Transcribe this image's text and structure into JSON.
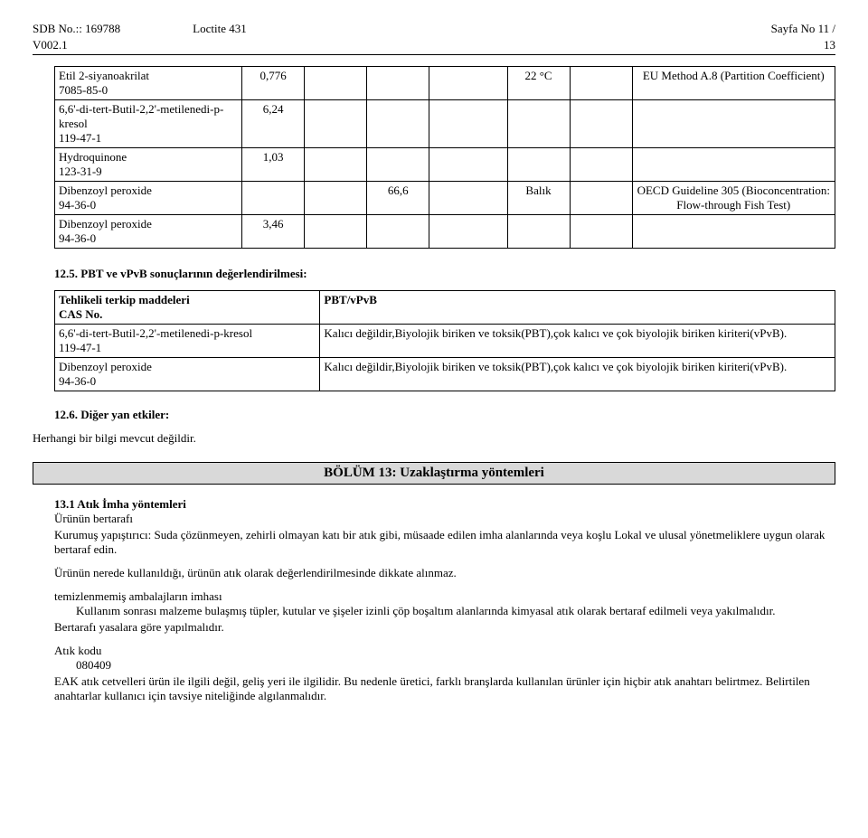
{
  "header": {
    "sdb": "SDB No.:: 169788",
    "product": "Loctite 431",
    "page": "Sayfa No 11 /",
    "version": "V002.1",
    "total": "13"
  },
  "table1": {
    "rows": [
      {
        "sub": "Etil 2-siyanoakrilat\n7085-85-0",
        "c1": "0,776",
        "c2": "",
        "c3": "",
        "c4": "",
        "c5": "22 °C",
        "c6": "",
        "method": "EU Method A.8 (Partition Coefficient)"
      },
      {
        "sub": "6,6'-di-tert-Butil-2,2'-metilenedi-p-kresol\n119-47-1",
        "c1": "6,24",
        "c2": "",
        "c3": "",
        "c4": "",
        "c5": "",
        "c6": "",
        "method": ""
      },
      {
        "sub": "Hydroquinone\n123-31-9",
        "c1": "1,03",
        "c2": "",
        "c3": "",
        "c4": "",
        "c5": "",
        "c6": "",
        "method": ""
      },
      {
        "sub": "Dibenzoyl peroxide\n94-36-0",
        "c1": "",
        "c2": "",
        "c3": "66,6",
        "c4": "",
        "c5": "Balık",
        "c6": "",
        "method": "OECD Guideline 305 (Bioconcentration: Flow-through Fish Test)"
      },
      {
        "sub": "Dibenzoyl peroxide\n94-36-0",
        "c1": "3,46",
        "c2": "",
        "c3": "",
        "c4": "",
        "c5": "",
        "c6": "",
        "method": ""
      }
    ]
  },
  "s125": {
    "title": "12.5. PBT ve vPvB sonuçlarının değerlendirilmesi:",
    "head1": "Tehlikeli terkip maddeleri\nCAS No.",
    "head2": "PBT/vPvB",
    "rows": [
      {
        "a": "6,6'-di-tert-Butil-2,2'-metilenedi-p-kresol\n119-47-1",
        "b": "Kalıcı değildir,Biyolojik biriken ve toksik(PBT),çok kalıcı ve çok biyolojik biriken kiriteri(vPvB)."
      },
      {
        "a": "Dibenzoyl peroxide\n94-36-0",
        "b": "Kalıcı değildir,Biyolojik biriken ve toksik(PBT),çok kalıcı ve çok biyolojik biriken kiriteri(vPvB)."
      }
    ]
  },
  "s126": {
    "title": "12.6. Diğer yan etkiler:",
    "body": "Herhangi bir bilgi mevcut değildir."
  },
  "banner13": "BÖLÜM 13: Uzaklaştırma yöntemleri",
  "s131": {
    "title": "13.1 Atık İmha yöntemleri",
    "sub1": "Ürünün bertarafı",
    "p1": "Kurumuş yapıştırıcı: Suda çözünmeyen, zehirli olmayan katı bir atık gibi, müsaade edilen imha alanlarında veya koşlu Lokal ve ulusal yönetmeliklere uygun olarak bertaraf edin.",
    "p2": "Ürünün nerede kullanıldığı, ürünün atık olarak değerlendirilmesinde dikkate alınmaz.",
    "sub2": "temizlenmemiş ambalajların imhası",
    "p3": "Kullanım sonrası malzeme bulaşmış tüpler, kutular ve şişeler izinli çöp boşaltım alanlarında kimyasal atık olarak bertaraf edilmeli veya yakılmalıdır.",
    "p4": "Bertarafı yasalara göre yapılmalıdır.",
    "sub3": "Atık kodu",
    "code": "080409",
    "p5": "EAK atık cetvelleri ürün ile ilgili değil, geliş yeri ile ilgilidir. Bu nedenle üretici, farklı branşlarda kullanılan ürünler için hiçbir atık anahtarı belirtmez. Belirtilen anahtarlar kullanıcı için tavsiye niteliğinde algılanmalıdır."
  }
}
